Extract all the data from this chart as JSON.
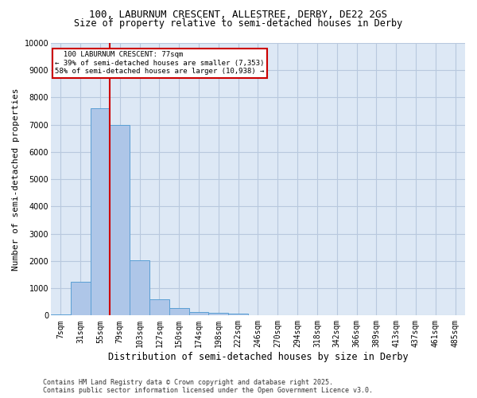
{
  "title_line1": "100, LABURNUM CRESCENT, ALLESTREE, DERBY, DE22 2GS",
  "title_line2": "Size of property relative to semi-detached houses in Derby",
  "xlabel": "Distribution of semi-detached houses by size in Derby",
  "ylabel": "Number of semi-detached properties",
  "footnote": "Contains HM Land Registry data © Crown copyright and database right 2025.\nContains public sector information licensed under the Open Government Licence v3.0.",
  "categories": [
    "7sqm",
    "31sqm",
    "55sqm",
    "79sqm",
    "103sqm",
    "127sqm",
    "150sqm",
    "174sqm",
    "198sqm",
    "222sqm",
    "246sqm",
    "270sqm",
    "294sqm",
    "318sqm",
    "342sqm",
    "366sqm",
    "389sqm",
    "413sqm",
    "437sqm",
    "461sqm",
    "485sqm"
  ],
  "values": [
    50,
    1230,
    7600,
    7000,
    2020,
    600,
    260,
    130,
    110,
    80,
    0,
    0,
    0,
    0,
    0,
    0,
    0,
    0,
    0,
    0,
    0
  ],
  "bar_color": "#aec6e8",
  "bar_edge_color": "#5a9fd4",
  "ylim": [
    0,
    10000
  ],
  "yticks": [
    0,
    1000,
    2000,
    3000,
    4000,
    5000,
    6000,
    7000,
    8000,
    9000,
    10000
  ],
  "property_line_index": 2.5,
  "property_label": "100 LABURNUM CRESCENT: 77sqm",
  "pct_smaller": 39,
  "pct_larger": 58,
  "count_smaller": 7353,
  "count_larger": 10938,
  "annotation_box_color": "#cc0000",
  "background_color": "#dde8f5",
  "grid_color": "#b8c8de",
  "title_fontsize": 9,
  "subtitle_fontsize": 8.5,
  "ylabel_fontsize": 8,
  "xlabel_fontsize": 8.5,
  "tick_fontsize": 7,
  "footnote_fontsize": 6
}
